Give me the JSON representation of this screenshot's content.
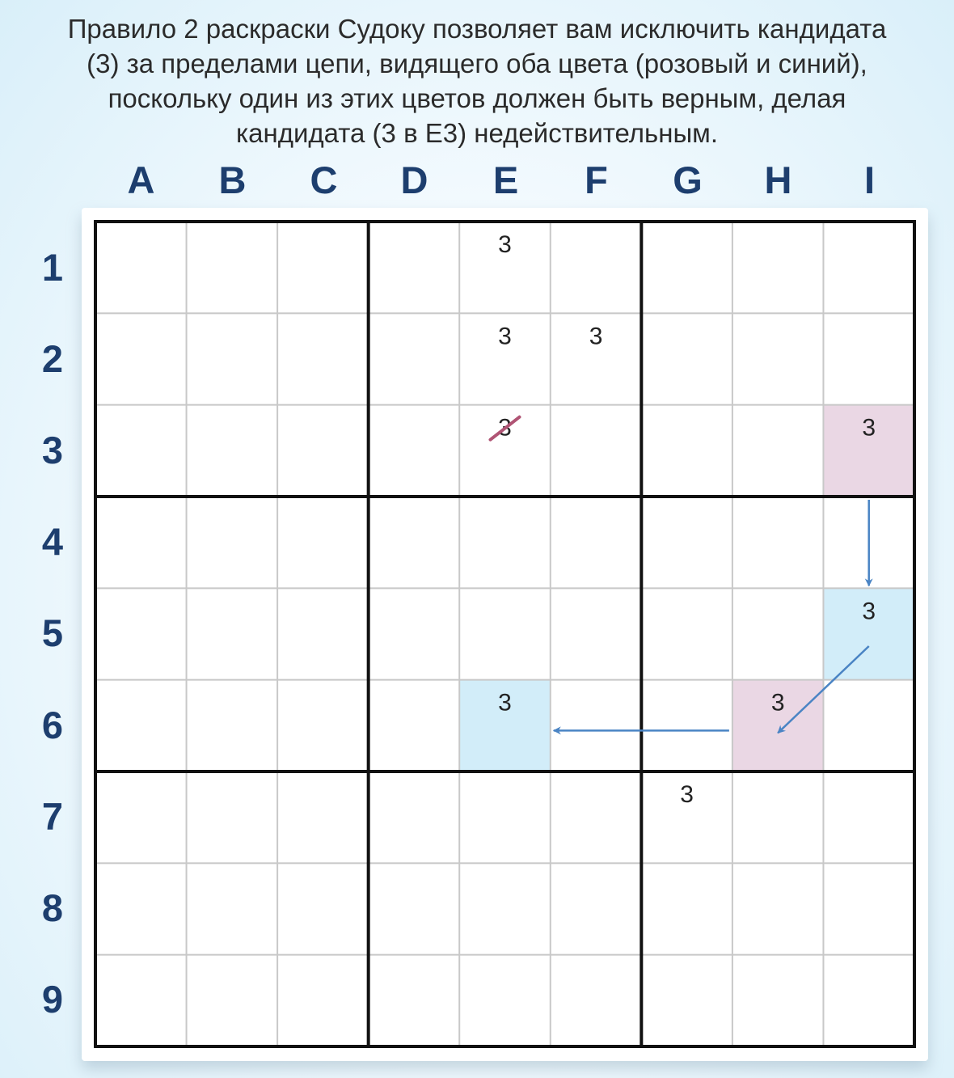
{
  "caption": {
    "line1": "Правило 2 раскраски Судоку позволяет вам исключить кандидата",
    "line2": "(3) за пределами цепи, видящего оба цвета (розовый и синий),",
    "line3": "поскольку один из этих цветов должен быть верным, делая",
    "line4": "кандидата (3 в E3) недействительным."
  },
  "columns": [
    "A",
    "B",
    "C",
    "D",
    "E",
    "F",
    "G",
    "H",
    "I"
  ],
  "rows": [
    "1",
    "2",
    "3",
    "4",
    "5",
    "6",
    "7",
    "8",
    "9"
  ],
  "colors": {
    "pink": "#ead7e4",
    "blue": "#d2edf9",
    "arrow": "#4a84c4",
    "strike": "#b05474",
    "label": "#1d3e6e"
  },
  "highlights": [
    {
      "cell": "I3",
      "color": "pink"
    },
    {
      "cell": "I5",
      "color": "blue"
    },
    {
      "cell": "H6",
      "color": "pink"
    },
    {
      "cell": "E6",
      "color": "blue"
    }
  ],
  "candidates": [
    {
      "cell": "E1",
      "value": "3",
      "struck": false
    },
    {
      "cell": "E2",
      "value": "3",
      "struck": false
    },
    {
      "cell": "F2",
      "value": "3",
      "struck": false
    },
    {
      "cell": "E3",
      "value": "3",
      "struck": true
    },
    {
      "cell": "I3",
      "value": "3",
      "struck": false
    },
    {
      "cell": "I5",
      "value": "3",
      "struck": false
    },
    {
      "cell": "E6",
      "value": "3",
      "struck": false
    },
    {
      "cell": "H6",
      "value": "3",
      "struck": false
    },
    {
      "cell": "G7",
      "value": "3",
      "struck": false
    }
  ],
  "chain_links": [
    {
      "from": "I3",
      "to": "I5"
    },
    {
      "from": "I5",
      "to": "H6"
    },
    {
      "from": "H6",
      "to": "E6"
    }
  ]
}
